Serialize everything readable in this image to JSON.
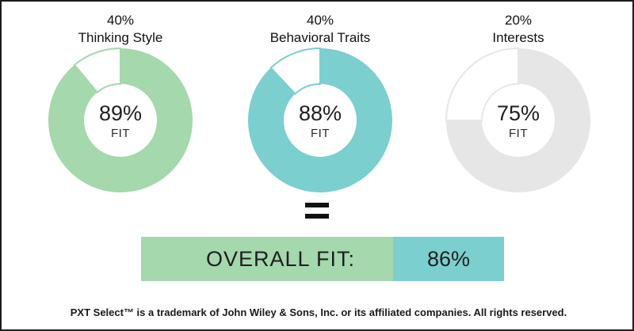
{
  "chart_data": {
    "type": "pie",
    "donuts": [
      {
        "weight": "40%",
        "label": "Thinking Style",
        "value": 89,
        "center_value": "89%",
        "center_sub": "FIT",
        "color": "#a5d8ad"
      },
      {
        "weight": "40%",
        "label": "Behavioral Traits",
        "value": 88,
        "center_value": "88%",
        "center_sub": "FIT",
        "color": "#7ccfcf"
      },
      {
        "weight": "20%",
        "label": "Interests",
        "value": 75,
        "center_value": "75%",
        "center_sub": "FIT",
        "color": "#e6e6e6"
      }
    ],
    "remainder_color": "#ffffff",
    "equals": "=",
    "overall": {
      "label": "OVERALL FIT:",
      "value": 86,
      "value_text": "86%",
      "label_color": "#a5d8ad",
      "value_color": "#7ccfcf"
    }
  },
  "footer": "PXT Select™ is a trademark of John Wiley & Sons, Inc. or its affiliated companies. All rights reserved."
}
